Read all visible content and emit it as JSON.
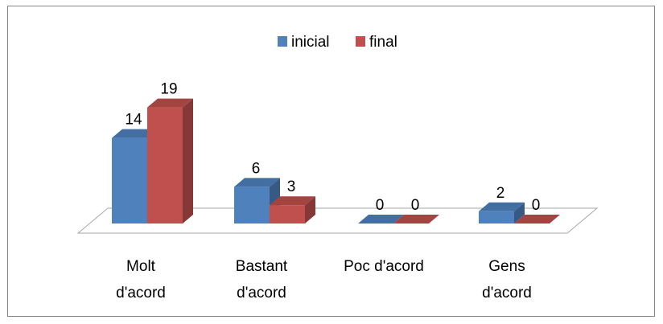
{
  "chart_data": {
    "type": "bar",
    "categories": [
      [
        "Molt",
        "d'acord"
      ],
      [
        "Bastant",
        "d'acord"
      ],
      [
        "Poc d'acord"
      ],
      [
        "Gens",
        "d'acord"
      ]
    ],
    "series": [
      {
        "name": "inicial",
        "values": [
          14,
          6,
          0,
          2
        ],
        "color": "#4f81bd"
      },
      {
        "name": "final",
        "values": [
          19,
          3,
          0,
          0
        ],
        "color": "#c0504d"
      }
    ],
    "ylim": [
      0,
      20
    ],
    "grid": false,
    "legend": "top",
    "three_d": true,
    "data_labels": true,
    "title": "",
    "xlabel": "",
    "ylabel": ""
  }
}
